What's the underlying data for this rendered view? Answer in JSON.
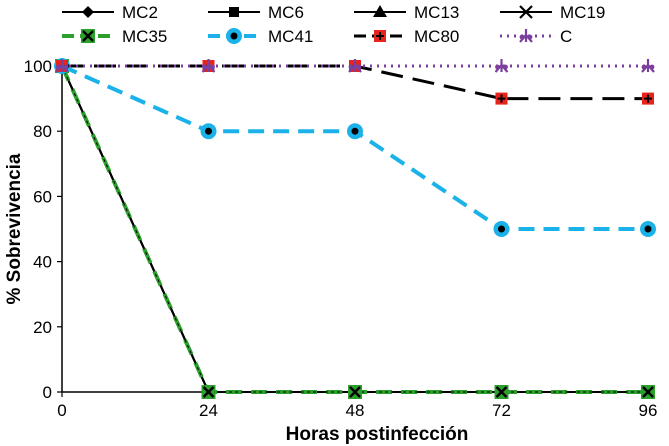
{
  "chart_data": {
    "type": "line",
    "title": "",
    "xlabel": "Horas postinfección",
    "ylabel": "% Sobrevivencia",
    "x": [
      0,
      24,
      48,
      72,
      96
    ],
    "xlim": [
      0,
      96
    ],
    "ylim": [
      0,
      100
    ],
    "yticks": [
      0,
      20,
      40,
      60,
      80,
      100
    ],
    "xticks": [
      0,
      24,
      48,
      72,
      96
    ],
    "grid": false,
    "legend": "top",
    "series": [
      {
        "name": "MC2",
        "values": [
          100,
          0,
          0,
          0,
          0
        ],
        "color": "#000000",
        "dash": "solid",
        "marker": "diamond"
      },
      {
        "name": "MC6",
        "values": [
          100,
          0,
          0,
          0,
          0
        ],
        "color": "#000000",
        "dash": "solid",
        "marker": "square"
      },
      {
        "name": "MC13",
        "values": [
          100,
          0,
          0,
          0,
          0
        ],
        "color": "#000000",
        "dash": "solid",
        "marker": "triangle"
      },
      {
        "name": "MC19",
        "values": [
          100,
          0,
          0,
          0,
          0
        ],
        "color": "#000000",
        "dash": "solid",
        "marker": "x"
      },
      {
        "name": "MC35",
        "values": [
          100,
          0,
          0,
          0,
          0
        ],
        "color": "#2ca02c",
        "dash": "dash",
        "marker": "x-box"
      },
      {
        "name": "MC41",
        "values": [
          100,
          80,
          80,
          50,
          50
        ],
        "color": "#1ab2e8",
        "dash": "dash",
        "marker": "circle"
      },
      {
        "name": "MC80",
        "values": [
          100,
          100,
          100,
          90,
          90
        ],
        "color": "#000000",
        "dash": "longdash",
        "marker": "red-square"
      },
      {
        "name": "C",
        "values": [
          100,
          100,
          100,
          100,
          100
        ],
        "color": "#7b3f9e",
        "dash": "dot",
        "marker": "star"
      }
    ]
  }
}
